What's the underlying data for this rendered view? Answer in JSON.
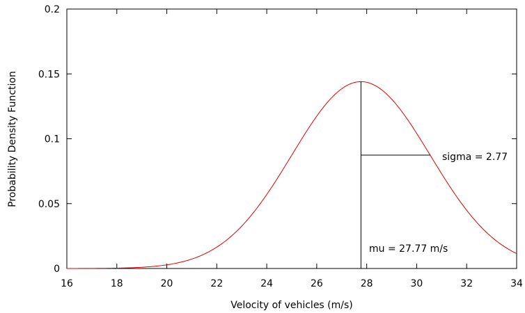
{
  "chart_data": {
    "type": "line",
    "title": "",
    "xlabel": "Velocity of vehicles (m/s)",
    "ylabel": "Probability Density Function",
    "xlim": [
      16,
      34
    ],
    "ylim": [
      0,
      0.2
    ],
    "x_ticks": [
      16,
      18,
      20,
      22,
      24,
      26,
      28,
      30,
      32,
      34
    ],
    "x_tick_labels": [
      "16",
      "18",
      "20",
      "22",
      "24",
      "26",
      "28",
      "30",
      "32",
      "34"
    ],
    "y_ticks": [
      0,
      0.05,
      0.1,
      0.15,
      0.2
    ],
    "y_tick_labels": [
      "0",
      "0.05",
      "0.1",
      "0.15",
      "0.2"
    ],
    "grid": false,
    "series": [
      {
        "type": "normal_pdf",
        "mu": 27.77,
        "sigma": 2.77,
        "x_range": [
          16,
          34
        ],
        "color": "#e00000"
      }
    ],
    "annotations": {
      "mu_line": {
        "x": 27.77,
        "y_top": 0.144
      },
      "sigma_line": {
        "x_from": 27.77,
        "x_to": 30.54,
        "y": 0.0874
      },
      "sigma_text": "sigma = 2.77",
      "mu_text": "mu = 27.77 m/s"
    }
  }
}
